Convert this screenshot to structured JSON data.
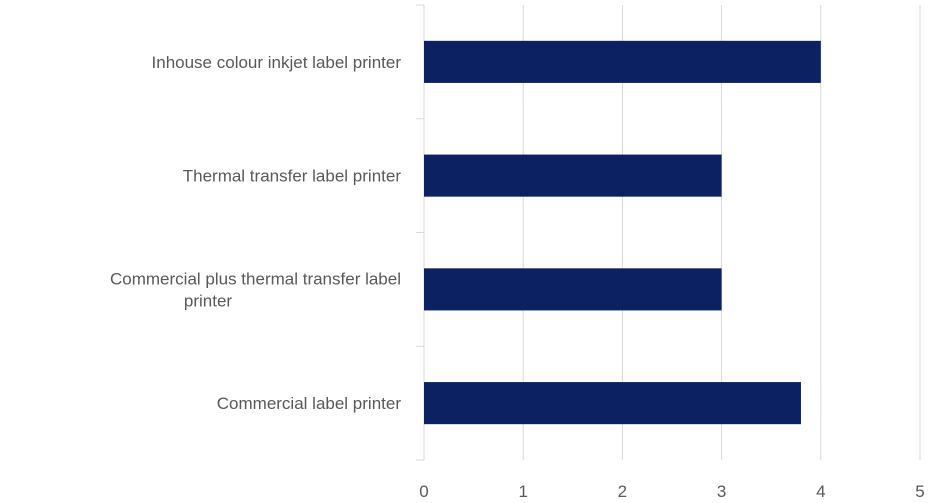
{
  "chart_data": {
    "type": "bar",
    "orientation": "horizontal",
    "categories": [
      [
        "Inhouse colour  inkjet label printer"
      ],
      [
        "Thermal transfer label printer"
      ],
      [
        "Commercial plus thermal transfer  label",
        "printer"
      ],
      [
        "Commercial  label printer"
      ]
    ],
    "values": [
      4,
      3,
      3,
      3.8
    ],
    "xlim": [
      0,
      5
    ],
    "xticks": [
      "0",
      "1",
      "2",
      "3",
      "4",
      "5"
    ],
    "grid": true,
    "legend": "none",
    "title": "",
    "xlabel": "",
    "ylabel": "",
    "colors": {
      "bar": "#0b2161",
      "grid": "#d9d9d9",
      "axis": "#d9d9d9",
      "text": "#595959"
    }
  }
}
